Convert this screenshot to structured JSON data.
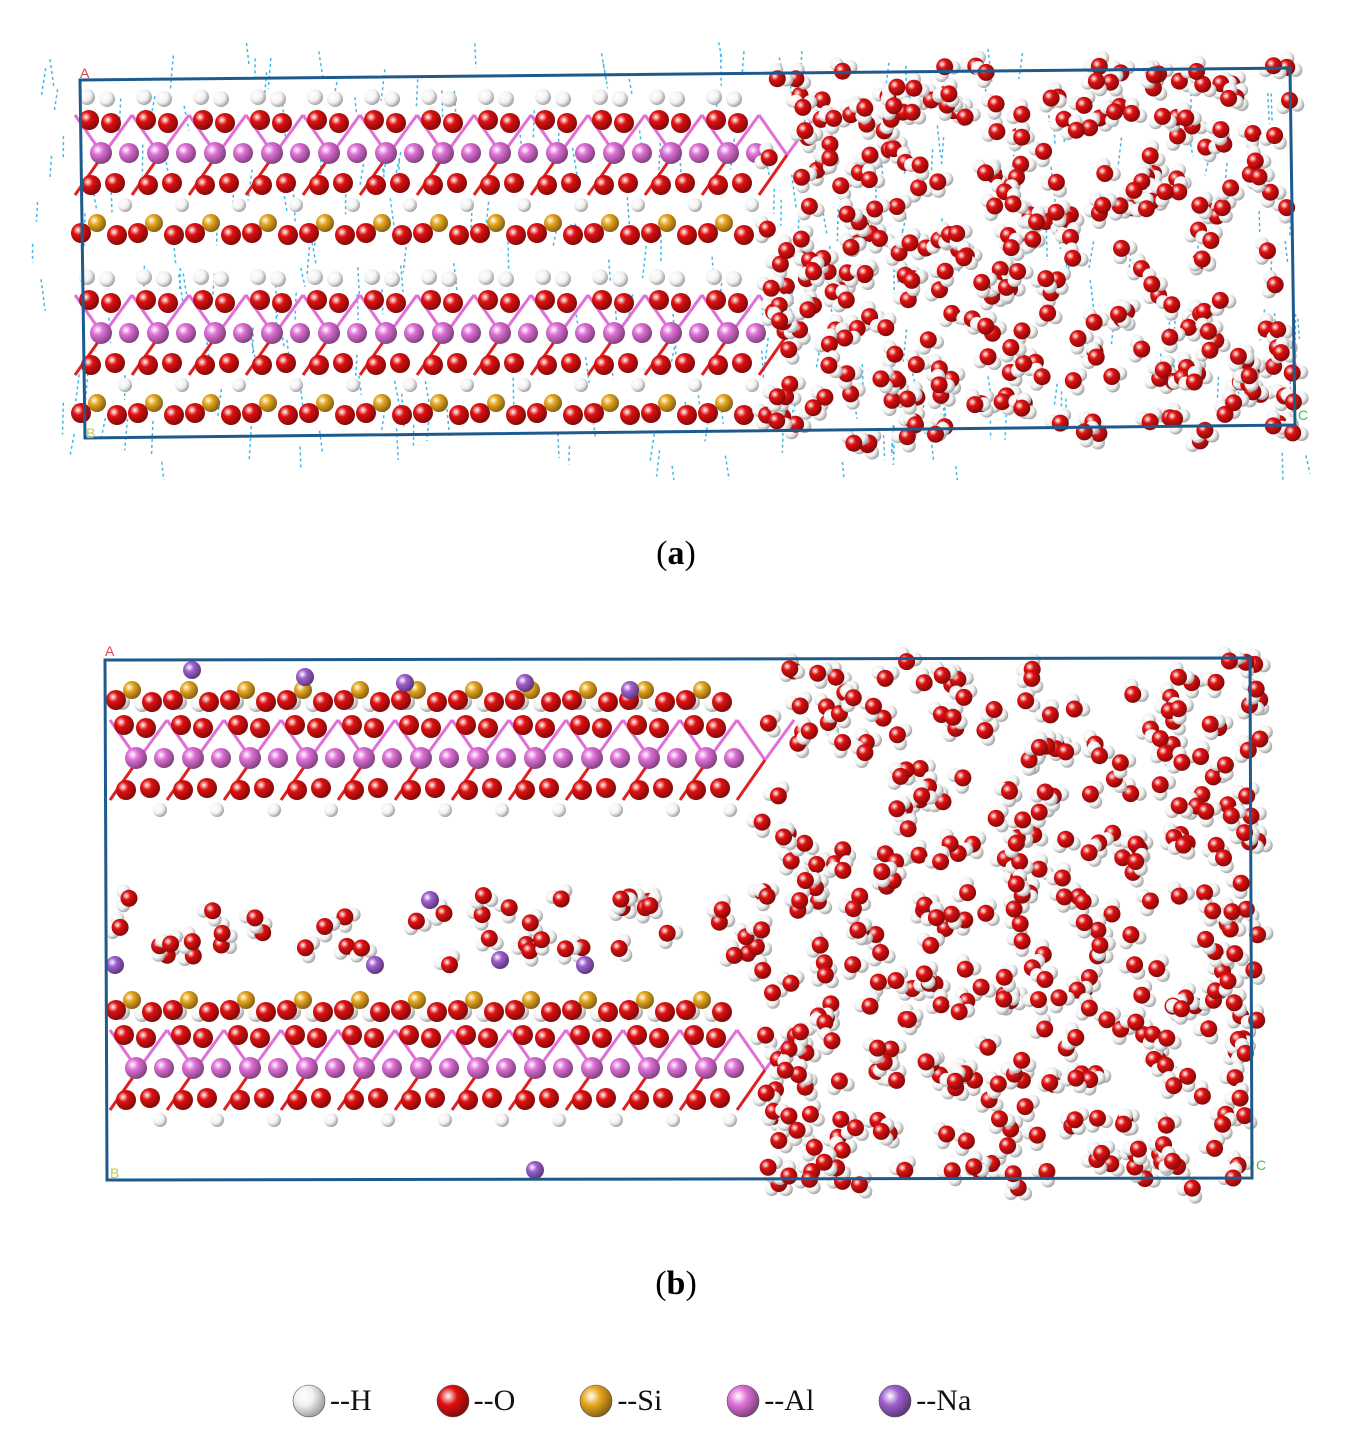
{
  "panels": [
    {
      "id": "a",
      "caption_open": "(",
      "caption_letter": "a",
      "caption_close": ")",
      "axis_labels": {
        "a": "A",
        "b": "B",
        "c": "C"
      }
    },
    {
      "id": "b",
      "caption_open": "(",
      "caption_letter": "b",
      "caption_close": ")",
      "axis_labels": {
        "a": "A",
        "b": "B",
        "c": "C"
      }
    }
  ],
  "legend": [
    {
      "label": "--H",
      "color": "#f2f2f2",
      "element": "H"
    },
    {
      "label": "--O",
      "color": "#e01010",
      "element": "O"
    },
    {
      "label": "--Si",
      "color": "#e8a820",
      "element": "Si"
    },
    {
      "label": "--Al",
      "color": "#e070d8",
      "element": "Al"
    },
    {
      "label": "--Na",
      "color": "#a060d0",
      "element": "Na"
    }
  ],
  "colors": {
    "cell_border": "#1f5a8c",
    "hbond": "#40b8e8",
    "substitution": "#20c020"
  }
}
